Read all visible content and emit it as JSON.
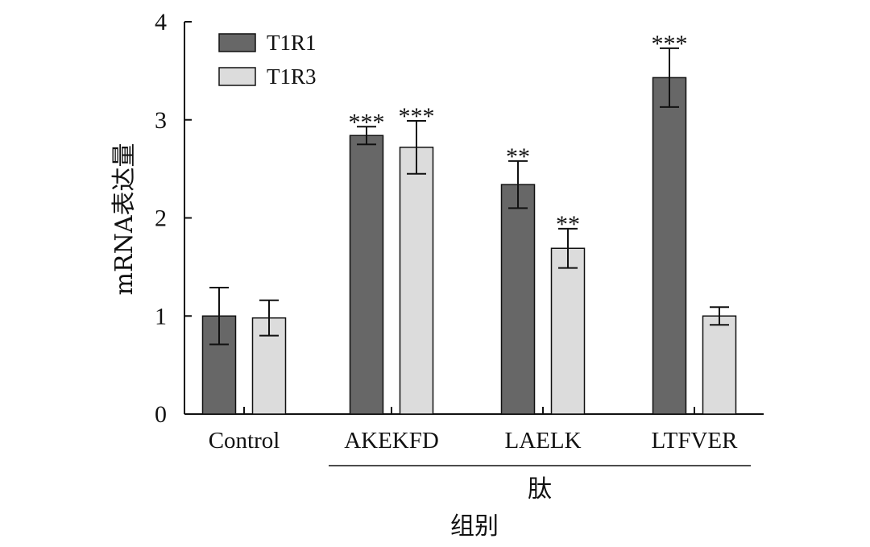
{
  "chart_data": {
    "type": "bar",
    "categories": [
      "Control",
      "AKEKFD",
      "LAELK",
      "LTFVER"
    ],
    "series": [
      {
        "name": "T1R1",
        "color": "#676767",
        "values": [
          1.0,
          2.84,
          2.34,
          3.43
        ],
        "errors": [
          0.29,
          0.09,
          0.24,
          0.3
        ],
        "significance": [
          "",
          "***",
          "**",
          "***"
        ]
      },
      {
        "name": "T1R3",
        "color": "#dcdcdc",
        "values": [
          0.98,
          2.72,
          1.69,
          1.0
        ],
        "errors": [
          0.18,
          0.27,
          0.2,
          0.09
        ],
        "significance": [
          "",
          "***",
          "**",
          ""
        ]
      }
    ],
    "ylabel": "mRNA表达量",
    "xlabel": "组别",
    "group_label": "肽",
    "group_members": [
      "AKEKFD",
      "LAELK",
      "LTFVER"
    ],
    "ylim": [
      0,
      4
    ],
    "yticks": [
      "0",
      "1",
      "2",
      "3",
      "4"
    ],
    "grid": false,
    "legend_position": "top-left"
  }
}
